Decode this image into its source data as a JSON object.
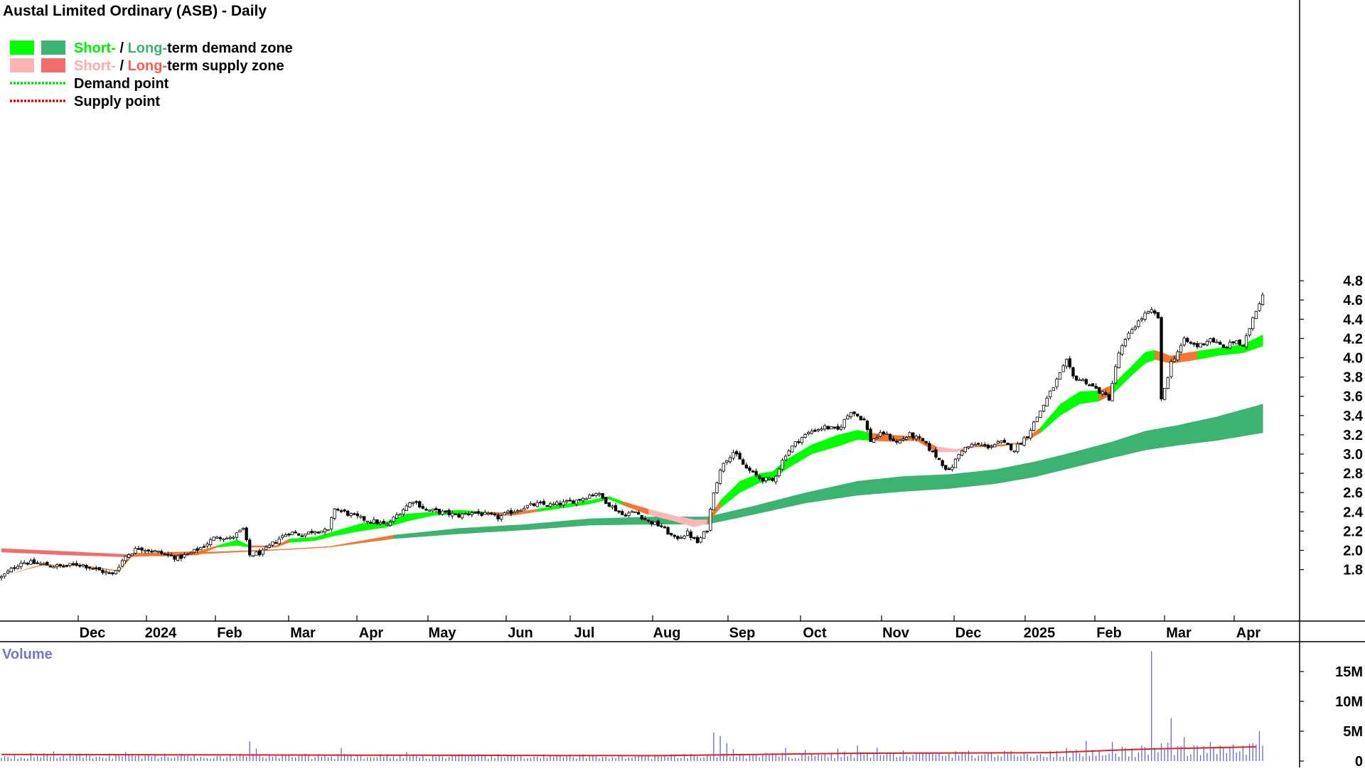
{
  "chart_data": [
    {
      "type": "candlestick",
      "title": "Austal Limited Ordinary (ASB) - Daily",
      "ylim": [
        1.6,
        4.8
      ],
      "y_ticks": [
        1.8,
        2.0,
        2.2,
        2.4,
        2.6,
        2.8,
        3.0,
        3.2,
        3.4,
        3.6,
        3.8,
        4.0,
        4.2,
        4.4,
        4.6,
        4.8
      ],
      "x_ticks": [
        "Dec",
        "2024",
        "Feb",
        "Mar",
        "Apr",
        "May",
        "Jun",
        "Jul",
        "Aug",
        "Sep",
        "Oct",
        "Nov",
        "Dec",
        "2025",
        "Feb",
        "Mar",
        "Apr"
      ],
      "legend": {
        "position": "top-left",
        "entries": [
          {
            "parts": [
              "Short-",
              " / ",
              "Long-",
              "term demand zone"
            ],
            "colors": [
              "#00ee00",
              "#000000",
              "#3cb371",
              "#000000"
            ],
            "swatches": [
              "#00ff00",
              "#3cb371"
            ]
          },
          {
            "parts": [
              "Short-",
              " / ",
              "Long-",
              "term supply zone"
            ],
            "colors": [
              "#ffaaaa",
              "#000000",
              "#ff5a50",
              "#000000"
            ],
            "swatches": [
              "#ffb3b3",
              "#f26d6d"
            ]
          },
          {
            "parts": [
              "Demand point"
            ],
            "colors": [
              "#000000"
            ],
            "line": "#00dd00"
          },
          {
            "parts": [
              "Supply point"
            ],
            "colors": [
              "#000000"
            ],
            "line": "#ee0000"
          }
        ]
      },
      "colors": {
        "short_demand": "#00ff00",
        "long_demand": "#3cb371",
        "short_supply": "#ffb6b6",
        "long_supply": "#f26d6d",
        "transition": "#f07830",
        "candle": "#000000"
      },
      "price_anchors": [
        [
          0,
          1.72
        ],
        [
          6,
          1.88
        ],
        [
          12,
          1.86
        ],
        [
          18,
          1.83
        ],
        [
          24,
          1.86
        ],
        [
          30,
          1.79
        ],
        [
          34,
          1.75
        ],
        [
          38,
          1.94
        ],
        [
          42,
          2.03
        ],
        [
          48,
          1.98
        ],
        [
          54,
          1.92
        ],
        [
          58,
          1.97
        ],
        [
          62,
          2.05
        ],
        [
          66,
          2.15
        ],
        [
          70,
          2.12
        ],
        [
          74,
          2.22
        ],
        [
          76,
          1.95
        ],
        [
          80,
          1.98
        ],
        [
          84,
          2.1
        ],
        [
          88,
          2.19
        ],
        [
          92,
          2.16
        ],
        [
          96,
          2.21
        ],
        [
          100,
          2.2
        ],
        [
          102,
          2.44
        ],
        [
          106,
          2.38
        ],
        [
          110,
          2.33
        ],
        [
          114,
          2.3
        ],
        [
          118,
          2.26
        ],
        [
          122,
          2.4
        ],
        [
          126,
          2.52
        ],
        [
          130,
          2.42
        ],
        [
          134,
          2.4
        ],
        [
          140,
          2.36
        ],
        [
          144,
          2.4
        ],
        [
          148,
          2.37
        ],
        [
          152,
          2.34
        ],
        [
          156,
          2.4
        ],
        [
          160,
          2.45
        ],
        [
          164,
          2.48
        ],
        [
          168,
          2.47
        ],
        [
          172,
          2.49
        ],
        [
          176,
          2.52
        ],
        [
          182,
          2.6
        ],
        [
          186,
          2.48
        ],
        [
          190,
          2.37
        ],
        [
          194,
          2.4
        ],
        [
          198,
          2.3
        ],
        [
          202,
          2.25
        ],
        [
          206,
          2.12
        ],
        [
          210,
          2.18
        ],
        [
          213,
          2.08
        ],
        [
          216,
          2.22
        ],
        [
          218,
          2.62
        ],
        [
          221,
          2.92
        ],
        [
          224,
          3.02
        ],
        [
          228,
          2.85
        ],
        [
          232,
          2.75
        ],
        [
          236,
          2.72
        ],
        [
          240,
          3.0
        ],
        [
          244,
          3.15
        ],
        [
          248,
          3.24
        ],
        [
          252,
          3.28
        ],
        [
          256,
          3.25
        ],
        [
          260,
          3.45
        ],
        [
          264,
          3.35
        ],
        [
          266,
          3.14
        ],
        [
          270,
          3.22
        ],
        [
          274,
          3.12
        ],
        [
          278,
          3.2
        ],
        [
          282,
          3.13
        ],
        [
          286,
          2.98
        ],
        [
          290,
          2.82
        ],
        [
          294,
          3.05
        ],
        [
          298,
          3.1
        ],
        [
          302,
          3.08
        ],
        [
          306,
          3.12
        ],
        [
          310,
          3.05
        ],
        [
          314,
          3.2
        ],
        [
          318,
          3.45
        ],
        [
          322,
          3.7
        ],
        [
          326,
          3.96
        ],
        [
          328,
          3.8
        ],
        [
          332,
          3.75
        ],
        [
          336,
          3.65
        ],
        [
          339,
          3.58
        ],
        [
          342,
          4.05
        ],
        [
          346,
          4.3
        ],
        [
          350,
          4.45
        ],
        [
          352,
          4.48
        ],
        [
          354,
          4.42
        ],
        [
          355,
          3.55
        ],
        [
          358,
          3.95
        ],
        [
          362,
          4.18
        ],
        [
          366,
          4.12
        ],
        [
          370,
          4.2
        ],
        [
          374,
          4.1
        ],
        [
          378,
          4.18
        ],
        [
          380,
          4.1
        ],
        [
          383,
          4.42
        ],
        [
          386,
          4.66
        ]
      ],
      "short_zone": [
        [
          0,
          1.73,
          1.73,
          "transition"
        ],
        [
          12,
          1.84,
          1.85,
          "transition"
        ],
        [
          24,
          1.84,
          1.85,
          "transition"
        ],
        [
          36,
          1.78,
          1.79,
          "transition"
        ],
        [
          40,
          1.94,
          1.97,
          "transition"
        ],
        [
          50,
          1.94,
          1.98,
          "transition"
        ],
        [
          60,
          1.95,
          1.99,
          "transition"
        ],
        [
          66,
          2.03,
          2.05,
          "short_demand"
        ],
        [
          72,
          2.05,
          2.11,
          "short_demand"
        ],
        [
          76,
          2.03,
          2.05,
          "transition"
        ],
        [
          84,
          2.03,
          2.05,
          "transition"
        ],
        [
          88,
          2.08,
          2.12,
          "short_demand"
        ],
        [
          96,
          2.1,
          2.14,
          "short_demand"
        ],
        [
          102,
          2.15,
          2.2,
          "short_demand"
        ],
        [
          110,
          2.2,
          2.28,
          "short_demand"
        ],
        [
          118,
          2.24,
          2.3,
          "short_demand"
        ],
        [
          124,
          2.3,
          2.38,
          "short_demand"
        ],
        [
          132,
          2.36,
          2.4,
          "short_demand"
        ],
        [
          140,
          2.38,
          2.42,
          "short_demand"
        ],
        [
          148,
          2.38,
          2.4,
          "transition"
        ],
        [
          156,
          2.36,
          2.39,
          "transition"
        ],
        [
          164,
          2.4,
          2.43,
          "short_demand"
        ],
        [
          172,
          2.44,
          2.48,
          "short_demand"
        ],
        [
          180,
          2.48,
          2.52,
          "short_demand"
        ],
        [
          186,
          2.53,
          2.56,
          "short_demand"
        ],
        [
          190,
          2.47,
          2.51,
          "transition"
        ],
        [
          198,
          2.37,
          2.43,
          "short_supply"
        ],
        [
          206,
          2.3,
          2.36,
          "short_supply"
        ],
        [
          212,
          2.24,
          2.32,
          "short_supply"
        ],
        [
          216,
          2.28,
          2.32,
          "transition"
        ],
        [
          220,
          2.44,
          2.52,
          "short_demand"
        ],
        [
          226,
          2.6,
          2.72,
          "short_demand"
        ],
        [
          232,
          2.7,
          2.8,
          "short_demand"
        ],
        [
          236,
          2.73,
          2.82,
          "short_demand"
        ],
        [
          240,
          2.84,
          2.94,
          "short_demand"
        ],
        [
          248,
          3.0,
          3.1,
          "short_demand"
        ],
        [
          256,
          3.08,
          3.2,
          "short_demand"
        ],
        [
          262,
          3.15,
          3.25,
          "short_demand"
        ],
        [
          266,
          3.14,
          3.22,
          "transition"
        ],
        [
          272,
          3.13,
          3.2,
          "transition"
        ],
        [
          280,
          3.14,
          3.18,
          "transition"
        ],
        [
          286,
          3.02,
          3.08,
          "short_supply"
        ],
        [
          292,
          3.02,
          3.05,
          "short_supply"
        ],
        [
          298,
          3.07,
          3.09,
          "transition"
        ],
        [
          306,
          3.08,
          3.1,
          "transition"
        ],
        [
          312,
          3.11,
          3.12,
          "transition"
        ],
        [
          318,
          3.22,
          3.28,
          "short_demand"
        ],
        [
          324,
          3.4,
          3.52,
          "short_demand"
        ],
        [
          330,
          3.52,
          3.65,
          "short_demand"
        ],
        [
          336,
          3.55,
          3.66,
          "transition"
        ],
        [
          340,
          3.62,
          3.72,
          "short_demand"
        ],
        [
          346,
          3.82,
          3.92,
          "short_demand"
        ],
        [
          350,
          3.94,
          4.06,
          "short_demand"
        ],
        [
          353,
          3.98,
          4.08,
          "transition"
        ],
        [
          358,
          3.94,
          4.02,
          "transition"
        ],
        [
          362,
          3.96,
          4.05,
          "transition"
        ],
        [
          366,
          3.98,
          4.07,
          "short_demand"
        ],
        [
          372,
          4.02,
          4.1,
          "short_demand"
        ],
        [
          380,
          4.05,
          4.14,
          "short_demand"
        ],
        [
          386,
          4.12,
          4.24,
          "short_demand"
        ]
      ],
      "long_zone": [
        [
          0,
          1.98,
          2.02,
          "long_supply"
        ],
        [
          20,
          1.95,
          1.99,
          "long_supply"
        ],
        [
          38,
          1.93,
          1.96,
          "long_supply"
        ],
        [
          60,
          1.96,
          1.98,
          "transition"
        ],
        [
          84,
          2.0,
          2.01,
          "transition"
        ],
        [
          100,
          2.03,
          2.04,
          "transition"
        ],
        [
          120,
          2.12,
          2.16,
          "long_demand"
        ],
        [
          140,
          2.17,
          2.23,
          "long_demand"
        ],
        [
          160,
          2.21,
          2.27,
          "long_demand"
        ],
        [
          180,
          2.26,
          2.33,
          "long_demand"
        ],
        [
          200,
          2.27,
          2.35,
          "long_demand"
        ],
        [
          216,
          2.27,
          2.35,
          "long_demand"
        ],
        [
          230,
          2.37,
          2.46,
          "long_demand"
        ],
        [
          246,
          2.49,
          2.6,
          "long_demand"
        ],
        [
          262,
          2.57,
          2.72,
          "long_demand"
        ],
        [
          276,
          2.61,
          2.77,
          "long_demand"
        ],
        [
          290,
          2.64,
          2.79,
          "long_demand"
        ],
        [
          304,
          2.69,
          2.84,
          "long_demand"
        ],
        [
          316,
          2.76,
          2.92,
          "long_demand"
        ],
        [
          328,
          2.86,
          3.02,
          "long_demand"
        ],
        [
          340,
          2.96,
          3.13,
          "long_demand"
        ],
        [
          350,
          3.04,
          3.24,
          "long_demand"
        ],
        [
          360,
          3.09,
          3.3,
          "long_demand"
        ],
        [
          372,
          3.14,
          3.39,
          "long_demand"
        ],
        [
          386,
          3.22,
          3.52,
          "long_demand"
        ]
      ]
    },
    {
      "type": "bar",
      "title": "Volume",
      "ylim": [
        0,
        20
      ],
      "unit": "M",
      "y_ticks": [
        {
          "value": 0,
          "label": "0"
        },
        {
          "value": 5,
          "label": "5M"
        },
        {
          "value": 10,
          "label": "10M"
        },
        {
          "value": 15,
          "label": "15M"
        }
      ],
      "spikes": [
        [
          16,
          1.6
        ],
        [
          38,
          1.5
        ],
        [
          76,
          3.3
        ],
        [
          78,
          2.1
        ],
        [
          104,
          2.2
        ],
        [
          124,
          1.5
        ],
        [
          218,
          4.8
        ],
        [
          220,
          4.2
        ],
        [
          222,
          3.0
        ],
        [
          224,
          2.0
        ],
        [
          240,
          2.2
        ],
        [
          246,
          1.9
        ],
        [
          256,
          2.1
        ],
        [
          262,
          2.6
        ],
        [
          268,
          2.2
        ],
        [
          276,
          1.8
        ],
        [
          296,
          1.8
        ],
        [
          326,
          2.2
        ],
        [
          332,
          3.4
        ],
        [
          340,
          3.2
        ],
        [
          343,
          2.4
        ],
        [
          349,
          2.6
        ],
        [
          352,
          18.4
        ],
        [
          355,
          3.0
        ],
        [
          357,
          3.1
        ],
        [
          358,
          7.2
        ],
        [
          362,
          4.0
        ],
        [
          370,
          3.2
        ],
        [
          383,
          3.0
        ],
        [
          385,
          5.0
        ]
      ],
      "average_line": [
        [
          0,
          1.1
        ],
        [
          100,
          1.0
        ],
        [
          200,
          0.9
        ],
        [
          260,
          1.3
        ],
        [
          320,
          1.4
        ],
        [
          350,
          2.0
        ],
        [
          386,
          2.4
        ]
      ],
      "bar_color": "#6666cc",
      "average_color": "#dd2222"
    }
  ]
}
